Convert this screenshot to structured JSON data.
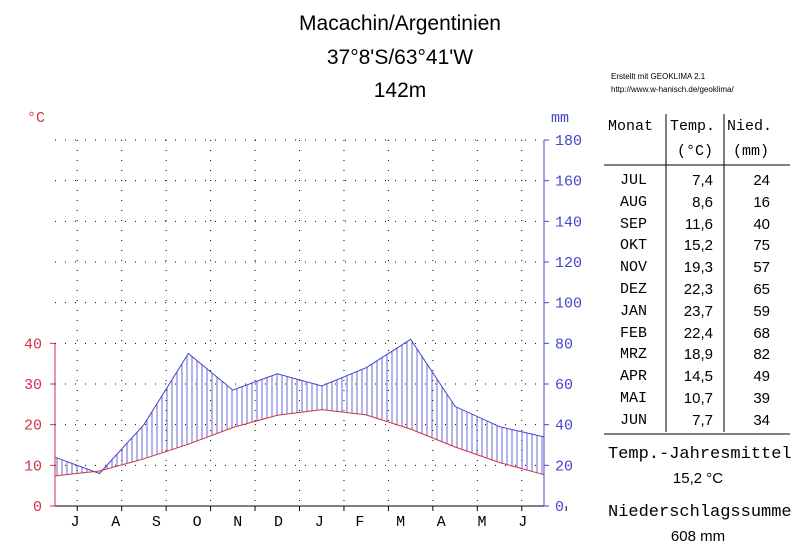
{
  "header": {
    "title_line1": "Macachin/Argentinien",
    "title_line2": "37°8'S/63°41'W",
    "title_line3": "142m"
  },
  "credit": {
    "line1": "Erstellt mit GEOKLIMA 2.1",
    "line2": "http://www.w-hanisch.de/geoklima/"
  },
  "axes": {
    "left_unit": "°C",
    "right_unit": "mm",
    "temp_ticks": [
      "0",
      "10",
      "20",
      "30",
      "40"
    ],
    "precip_ticks": [
      "0",
      "20",
      "40",
      "60",
      "80",
      "100",
      "120",
      "140",
      "160",
      "180"
    ]
  },
  "colors": {
    "temperature": "#cc3344",
    "precipitation": "#4444cc",
    "grid": "#000000",
    "dry_marker": "#e8c020"
  },
  "table": {
    "col_month": "Monat",
    "col_temp": "Temp.",
    "col_temp_unit": "(°C)",
    "col_precip": "Nied.",
    "col_precip_unit": "(mm)",
    "rows": [
      {
        "month": "JUL",
        "temp": "7,4",
        "precip": "24"
      },
      {
        "month": "AUG",
        "temp": "8,6",
        "precip": "16"
      },
      {
        "month": "SEP",
        "temp": "11,6",
        "precip": "40"
      },
      {
        "month": "OKT",
        "temp": "15,2",
        "precip": "75"
      },
      {
        "month": "NOV",
        "temp": "19,3",
        "precip": "57"
      },
      {
        "month": "DEZ",
        "temp": "22,3",
        "precip": "65"
      },
      {
        "month": "JAN",
        "temp": "23,7",
        "precip": "59"
      },
      {
        "month": "FEB",
        "temp": "22,4",
        "precip": "68"
      },
      {
        "month": "MRZ",
        "temp": "18,9",
        "precip": "82"
      },
      {
        "month": "APR",
        "temp": "14,5",
        "precip": "49"
      },
      {
        "month": "MAI",
        "temp": "10,7",
        "precip": "39"
      },
      {
        "month": "JUN",
        "temp": "7,7",
        "precip": "34"
      }
    ]
  },
  "summary": {
    "temp_label": "Temp.-Jahresmittel",
    "temp_value": "15,2 °C",
    "precip_label": "Niederschlagssumme",
    "precip_value": "608 mm"
  },
  "chart_data": {
    "type": "line",
    "categories": [
      "J",
      "A",
      "S",
      "O",
      "N",
      "D",
      "J",
      "F",
      "M",
      "A",
      "M",
      "J"
    ],
    "series": [
      {
        "axis": "left",
        "unit": "°C",
        "values": [
          7.4,
          8.6,
          11.6,
          15.2,
          19.3,
          22.3,
          23.7,
          22.4,
          18.9,
          14.5,
          10.7,
          7.7
        ]
      },
      {
        "axis": "right",
        "unit": "mm",
        "values": [
          24,
          16,
          40,
          75,
          57,
          65,
          59,
          68,
          82,
          49,
          39,
          34
        ]
      }
    ],
    "ylim_left": [
      0,
      50
    ],
    "ylim_right": [
      0,
      180
    ],
    "grid": true,
    "note_scale": "1 °C = 2 mm up to 100 mm"
  }
}
